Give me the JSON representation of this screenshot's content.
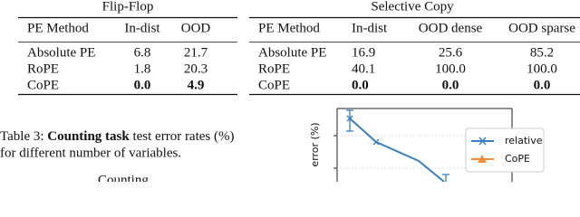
{
  "tables": [
    {
      "title": "Flip-Flop",
      "header": [
        "PE Method",
        "In-dist",
        "OOD"
      ],
      "rows": [
        [
          "Absolute PE",
          "6.8",
          "21.7"
        ],
        [
          "RoPE",
          "1.8",
          "20.3"
        ],
        [
          "CoPE",
          "0.0",
          "4.9"
        ]
      ]
    },
    {
      "title": "Selective Copy",
      "header": [
        "PE Method",
        "In-dist",
        "OOD dense",
        "OOD sparse"
      ],
      "rows": [
        [
          "Absolute PE",
          "16.9",
          "25.6",
          "85.2"
        ],
        [
          "RoPE",
          "40.1",
          "100.0",
          "100.0"
        ],
        [
          "CoPE",
          "0.0",
          "0.0",
          "0.0"
        ]
      ]
    }
  ],
  "caption": {
    "label": "Table 3:",
    "bold": "Counting task",
    "line1": "test error rates (%)",
    "line2": "for different number of variables."
  },
  "figure_title": "Counting",
  "figure": {
    "y_label": "error (%)",
    "legend": [
      "relative",
      "CoPE"
    ]
  }
}
